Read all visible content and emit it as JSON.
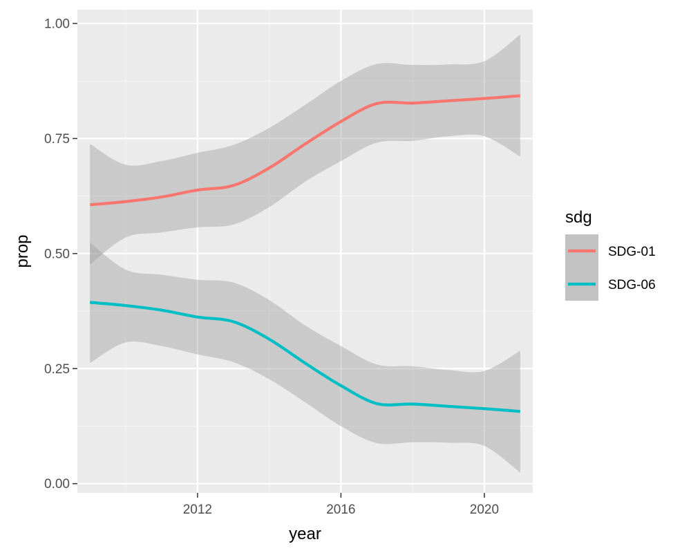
{
  "chart_data": {
    "type": "line",
    "xlabel": "year",
    "ylabel": "prop",
    "xlim": [
      2008.65,
      2021.35
    ],
    "ylim": [
      -0.02,
      1.03
    ],
    "x_ticks": [
      2012,
      2016,
      2020
    ],
    "x_tick_labels": [
      "2012",
      "2016",
      "2020"
    ],
    "y_ticks": [
      0,
      0.25,
      0.5,
      0.75,
      1.0
    ],
    "y_tick_labels": [
      "0.00",
      "0.25",
      "0.50",
      "0.75",
      "1.00"
    ],
    "grid": true,
    "legend": {
      "title": "sdg",
      "position": "right"
    },
    "series": [
      {
        "name": "SDG-01",
        "color": "#F8766D",
        "x": [
          2009,
          2010,
          2011,
          2012,
          2013,
          2014,
          2015,
          2016,
          2017,
          2018,
          2019,
          2020,
          2021
        ],
        "y": [
          0.606,
          0.613,
          0.623,
          0.638,
          0.648,
          0.686,
          0.738,
          0.787,
          0.826,
          0.827,
          0.832,
          0.837,
          0.843
        ],
        "lower": [
          0.476,
          0.535,
          0.546,
          0.557,
          0.563,
          0.601,
          0.656,
          0.701,
          0.741,
          0.745,
          0.755,
          0.755,
          0.711
        ],
        "upper": [
          0.738,
          0.693,
          0.701,
          0.719,
          0.736,
          0.773,
          0.823,
          0.875,
          0.912,
          0.91,
          0.911,
          0.918,
          0.976
        ]
      },
      {
        "name": "SDG-06",
        "color": "#00BFC4",
        "x": [
          2009,
          2010,
          2011,
          2012,
          2013,
          2014,
          2015,
          2016,
          2017,
          2018,
          2019,
          2020,
          2021
        ],
        "y": [
          0.394,
          0.387,
          0.377,
          0.362,
          0.352,
          0.314,
          0.262,
          0.213,
          0.174,
          0.173,
          0.168,
          0.163,
          0.157
        ],
        "lower": [
          0.262,
          0.307,
          0.299,
          0.281,
          0.264,
          0.227,
          0.177,
          0.125,
          0.088,
          0.09,
          0.089,
          0.082,
          0.024
        ],
        "upper": [
          0.524,
          0.465,
          0.454,
          0.443,
          0.437,
          0.399,
          0.344,
          0.299,
          0.259,
          0.255,
          0.247,
          0.245,
          0.289
        ]
      }
    ]
  }
}
